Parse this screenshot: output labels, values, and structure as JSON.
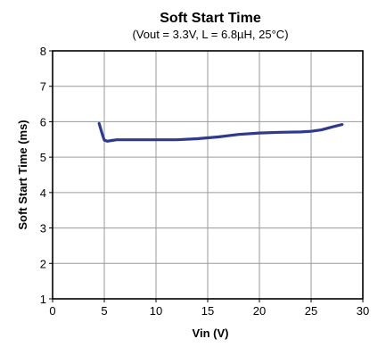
{
  "chart_data": {
    "type": "line",
    "title": "Soft Start Time",
    "subtitle": "(Vout = 3.3V, L = 6.8µH, 25°C)",
    "xlabel": "Vin (V)",
    "ylabel": "Soft Start Time (ms)",
    "xlim": [
      0,
      30
    ],
    "ylim": [
      1,
      8
    ],
    "xticks": [
      0,
      5,
      10,
      15,
      20,
      25,
      30
    ],
    "yticks": [
      1,
      2,
      3,
      4,
      5,
      6,
      7,
      8
    ],
    "grid": true,
    "line_color": "#2e3a8c",
    "series": [
      {
        "x": [
          4.5,
          4.8,
          5.0,
          5.3,
          5.7,
          6.2,
          7.0,
          8.0,
          10.0,
          12.0,
          14.0,
          16.0,
          18.0,
          20.0,
          22.0,
          24.0,
          25.0,
          26.0,
          27.0,
          28.0
        ],
        "y": [
          5.95,
          5.65,
          5.48,
          5.45,
          5.47,
          5.49,
          5.49,
          5.49,
          5.49,
          5.49,
          5.52,
          5.57,
          5.64,
          5.68,
          5.7,
          5.71,
          5.73,
          5.77,
          5.85,
          5.92
        ]
      }
    ]
  }
}
